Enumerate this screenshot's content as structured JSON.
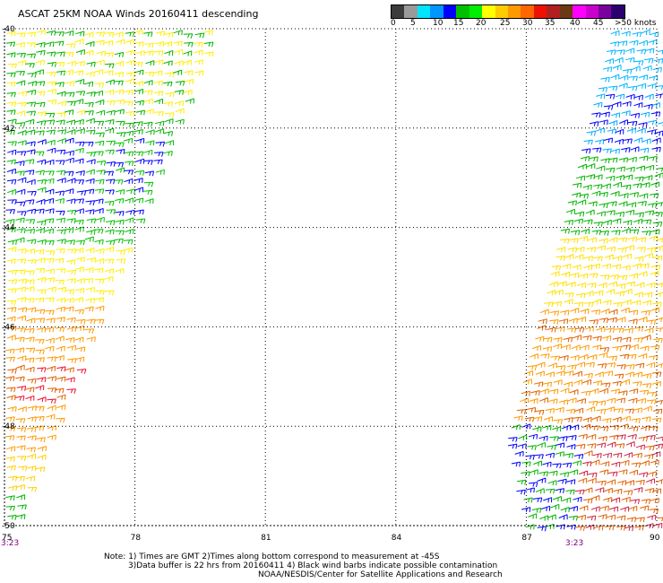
{
  "header": {
    "title": "ASCAT 25KM NOAA Winds 20160411 descending"
  },
  "legend": {
    "colors": [
      "#3c3c3c",
      "#9a9a9a",
      "#00e4ff",
      "#0096ff",
      "#0000ff",
      "#00c000",
      "#00ee00",
      "#ffff00",
      "#ffcc00",
      "#ff9900",
      "#ff6600",
      "#ee1100",
      "#b02020",
      "#6b3a14",
      "#ff00ff",
      "#cc00cc",
      "#7a00a0",
      "#2a0070"
    ],
    "labels": [
      "0",
      "5",
      "10",
      "15",
      "20",
      "25",
      "30",
      "35",
      "40",
      "45",
      ">50 knots"
    ]
  },
  "map": {
    "lat_labels": [
      "-40",
      "-42",
      "-44",
      "-46",
      "-48",
      "-50"
    ],
    "lon_labels": [
      "75",
      "78",
      "81",
      "84",
      "87",
      "90"
    ],
    "lat_range": [
      -50,
      -40
    ],
    "lon_range": [
      75,
      90
    ],
    "grid": "dotted"
  },
  "passes": [
    {
      "time": "3:23",
      "position": "bottom-left"
    },
    {
      "time": "3:23",
      "position": "bottom-right"
    }
  ],
  "notes": {
    "line1": "Note: 1) Times are GMT 2)Times along bottom correspond to measurement at -45S",
    "line2": "3)Data buffer is 22 hrs from 20160411 4) Black wind barbs indicate possible contamination",
    "line3": "NOAA/NESDIS/Center for Satellite Applications and Research"
  }
}
